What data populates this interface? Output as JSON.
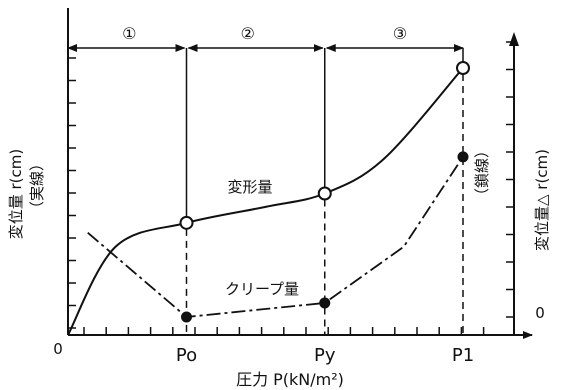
{
  "chart_data": {
    "type": "line",
    "xlabel": "圧力 P(kN/m²)",
    "ylabel_left": "変位量 r(cm)",
    "ylabel_left_sub": "（実線）",
    "ylabel_right": "変位量△ r(cm)",
    "ylabel_right_sub": "（鎖線）",
    "origin_label": "0",
    "right_zero_label": "0",
    "x_ticks": [
      "Po",
      "Py",
      "P1"
    ],
    "regions": [
      "①",
      "②",
      "③"
    ],
    "series": [
      {
        "name": "変形量",
        "line_style": "solid",
        "axis": "left",
        "points": [
          [
            0.0,
            0.0
          ],
          [
            0.12,
            0.33
          ],
          [
            0.3,
            0.42
          ],
          [
            0.5,
            0.48
          ],
          [
            0.65,
            0.53
          ],
          [
            0.8,
            0.66
          ],
          [
            1.0,
            1.0
          ]
        ],
        "markers": [
          {
            "x_tick": "Po",
            "x": 0.3,
            "y": 0.42
          },
          {
            "x_tick": "Py",
            "x": 0.65,
            "y": 0.53
          },
          {
            "x_tick": "P1",
            "x": 1.0,
            "y": 1.0
          }
        ],
        "marker_style": "open-circle"
      },
      {
        "name": "クリープ量",
        "line_style": "dash-dot",
        "axis": "right",
        "points": [
          [
            0.05,
            0.3
          ],
          [
            0.3,
            0.0
          ],
          [
            0.65,
            0.05
          ],
          [
            0.85,
            0.25
          ],
          [
            1.0,
            0.57
          ]
        ],
        "markers": [
          {
            "x_tick": "Po",
            "x": 0.3,
            "y": 0.0
          },
          {
            "x_tick": "Py",
            "x": 0.65,
            "y": 0.05
          },
          {
            "x_tick": "P1",
            "x": 1.0,
            "y": 0.57
          }
        ],
        "marker_style": "filled-circle"
      }
    ],
    "grid": false,
    "legend": "none"
  }
}
